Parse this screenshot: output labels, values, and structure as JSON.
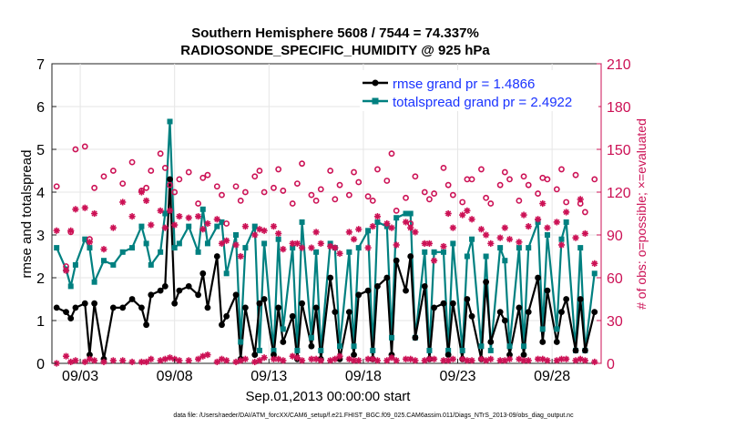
{
  "chart_data": {
    "type": "line",
    "title_line1": "Southern Hemisphere 5608 / 7544 = 74.337%",
    "title_line2": "RADIOSONDE_SPECIFIC_HUMIDITY @ 925 hPa",
    "xlabel": "Sep.01,2013 00:00:00 start",
    "ylabel_left": "rmse and totalspread",
    "ylabel_right": "# of obs: o=possible; ×=evaluated",
    "xlim": [
      1.5,
      30.6
    ],
    "ylim_left": [
      0,
      7
    ],
    "ylim_right": [
      0,
      210
    ],
    "xticks": [
      {
        "day": 3,
        "label": "09/03"
      },
      {
        "day": 8,
        "label": "09/08"
      },
      {
        "day": 13,
        "label": "09/13"
      },
      {
        "day": 18,
        "label": "09/18"
      },
      {
        "day": 23,
        "label": "09/23"
      },
      {
        "day": 28,
        "label": "09/28"
      }
    ],
    "yticks_left": [
      "0",
      "1",
      "2",
      "3",
      "4",
      "5",
      "6",
      "7"
    ],
    "yticks_right": [
      "0",
      "30",
      "60",
      "90",
      "120",
      "150",
      "180",
      "210"
    ],
    "legend": [
      {
        "label": "rmse grand pr = 1.4866",
        "color": "#000000"
      },
      {
        "label": "totalspread grand pr = 2.4922",
        "color": "#008080"
      }
    ],
    "footer": "data file: /Users/raeder/DAI/ATM_forcXX/CAM6_setup/f.e21.FHIST_BGC.f09_025.CAM6assim.011/Diags_NTrS_2013-09/obs_diag_output.nc",
    "colors": {
      "rmse": "#000000",
      "spread": "#008080",
      "obs": "#cc1155",
      "axis_right": "#cc1155",
      "legend_text": "#1a33ff"
    },
    "series": [
      {
        "name": "rmse",
        "x": [
          1.75,
          2.25,
          2.5,
          2.75,
          3.25,
          3.5,
          3.75,
          4.25,
          4.75,
          5.25,
          5.75,
          6.25,
          6.5,
          6.75,
          7.25,
          7.5,
          7.75,
          8.0,
          8.25,
          8.75,
          9.25,
          9.5,
          9.75,
          10.25,
          10.5,
          10.75,
          11.25,
          11.5,
          11.75,
          12.25,
          12.5,
          12.75,
          13.25,
          13.5,
          13.75,
          14.25,
          14.5,
          14.75,
          15.25,
          15.5,
          15.75,
          16.25,
          16.5,
          16.75,
          17.25,
          17.5,
          17.75,
          18.25,
          18.5,
          18.75,
          19.25,
          19.5,
          19.75,
          20.25,
          20.5,
          20.75,
          21.25,
          21.5,
          21.75,
          22.25,
          22.5,
          22.75,
          23.25,
          23.5,
          23.75,
          24.25,
          24.5,
          24.75,
          25.25,
          25.5,
          25.75,
          26.25,
          26.5,
          26.75,
          27.25,
          27.5,
          27.75,
          28.25,
          28.5,
          28.75,
          29.25,
          29.5,
          29.75,
          30.25
        ],
        "values": [
          1.3,
          1.2,
          1.05,
          1.3,
          1.4,
          0.2,
          1.4,
          0.1,
          1.3,
          1.3,
          1.5,
          1.3,
          0.9,
          1.6,
          1.7,
          1.8,
          4.3,
          1.4,
          1.7,
          1.8,
          1.6,
          2.1,
          1.3,
          2.5,
          0.9,
          1.1,
          1.6,
          0.1,
          1.3,
          0.2,
          1.4,
          1.5,
          0.2,
          1.3,
          0.5,
          1.1,
          0.1,
          1.4,
          0.4,
          1.3,
          0.1,
          2.0,
          1.2,
          0.1,
          1.2,
          0.2,
          1.6,
          1.7,
          0.1,
          1.8,
          2.0,
          0.2,
          2.4,
          1.7,
          2.5,
          0.6,
          1.8,
          0.1,
          1.3,
          1.4,
          0.2,
          1.4,
          0.1,
          1.5,
          1.1,
          0.1,
          1.9,
          0.5,
          1.2,
          1.0,
          0.2,
          1.3,
          0.2,
          1.2,
          2.0,
          0.5,
          1.7,
          0.5,
          1.2,
          1.5,
          0.3,
          1.5,
          0.3,
          1.2
        ]
      },
      {
        "name": "totalspread",
        "x": [
          1.75,
          2.25,
          2.5,
          2.75,
          3.25,
          3.5,
          3.75,
          4.25,
          4.75,
          5.25,
          5.75,
          6.25,
          6.5,
          6.75,
          7.25,
          7.5,
          7.75,
          8.0,
          8.25,
          8.75,
          9.25,
          9.5,
          9.75,
          10.25,
          10.5,
          10.75,
          11.25,
          11.5,
          11.75,
          12.25,
          12.5,
          12.75,
          13.25,
          13.5,
          13.75,
          14.25,
          14.5,
          14.75,
          15.25,
          15.5,
          15.75,
          16.25,
          16.5,
          16.75,
          17.25,
          17.5,
          17.75,
          18.25,
          18.5,
          18.75,
          19.25,
          19.5,
          19.75,
          20.25,
          20.5,
          20.75,
          21.25,
          21.5,
          21.75,
          22.25,
          22.5,
          22.75,
          23.25,
          23.5,
          23.75,
          24.25,
          24.5,
          24.75,
          25.25,
          25.5,
          25.75,
          26.25,
          26.5,
          26.75,
          27.25,
          27.5,
          27.75,
          28.25,
          28.5,
          28.75,
          29.25,
          29.5,
          29.75,
          30.25
        ],
        "values": [
          2.7,
          2.2,
          1.8,
          2.3,
          2.9,
          2.7,
          1.9,
          2.4,
          2.3,
          2.6,
          2.7,
          3.2,
          2.8,
          2.3,
          2.6,
          3.5,
          5.65,
          2.7,
          2.8,
          3.2,
          2.6,
          3.6,
          2.8,
          3.2,
          3.3,
          2.1,
          3.0,
          0.5,
          2.7,
          3.2,
          0.3,
          2.8,
          0.3,
          2.9,
          0.8,
          2.7,
          0.3,
          3.3,
          0.6,
          2.6,
          0.3,
          2.8,
          2.7,
          0.4,
          2.6,
          0.4,
          2.7,
          3.1,
          0.3,
          3.3,
          3.2,
          0.6,
          3.4,
          3.5,
          3.5,
          0.6,
          2.6,
          0.3,
          2.6,
          2.6,
          0.3,
          2.8,
          0.3,
          2.5,
          2.9,
          0.4,
          2.5,
          0.3,
          2.7,
          2.4,
          0.4,
          2.7,
          0.4,
          2.7,
          3.3,
          0.8,
          3.0,
          0.8,
          2.9,
          3.3,
          0.3,
          2.7,
          0.3,
          2.1
        ]
      },
      {
        "name": "obs possible",
        "x": [
          1.75,
          2.25,
          2.5,
          2.75,
          3.25,
          3.5,
          3.75,
          4.25,
          4.75,
          5.25,
          5.75,
          6.25,
          6.5,
          6.75,
          7.25,
          7.5,
          7.75,
          8.0,
          8.25,
          8.75,
          9.25,
          9.5,
          9.75,
          10.25,
          10.5,
          10.75,
          11.25,
          11.5,
          11.75,
          12.25,
          12.5,
          12.75,
          13.25,
          13.5,
          13.75,
          14.25,
          14.5,
          14.75,
          15.25,
          15.5,
          15.75,
          16.25,
          16.5,
          16.75,
          17.25,
          17.5,
          17.75,
          18.25,
          18.5,
          18.75,
          19.25,
          19.5,
          19.75,
          20.25,
          20.5,
          20.75,
          21.25,
          21.5,
          21.75,
          22.25,
          22.5,
          22.75,
          23.25,
          23.5,
          23.75,
          24.25,
          24.5,
          24.75,
          25.25,
          25.5,
          25.75,
          26.25,
          26.5,
          26.75,
          27.25,
          27.5,
          27.75,
          28.25,
          28.5,
          28.75,
          29.25,
          29.5,
          29.75,
          30.25
        ],
        "values": [
          124,
          68,
          92,
          150,
          152,
          87,
          123,
          131,
          135,
          126,
          141,
          121,
          123,
          135,
          147,
          137,
          125,
          120,
          129,
          134,
          112,
          130,
          132,
          124,
          118,
          98,
          124,
          114,
          120,
          131,
          135,
          120,
          123,
          136,
          121,
          112,
          126,
          140,
          118,
          114,
          122,
          135,
          115,
          125,
          118,
          134,
          127,
          117,
          114,
          136,
          128,
          147,
          107,
          116,
          98,
          131,
          120,
          115,
          119,
          137,
          125,
          118,
          113,
          129,
          129,
          136,
          116,
          112,
          125,
          134,
          129,
          114,
          131,
          125,
          119,
          130,
          129,
          122,
          136,
          113,
          132,
          112,
          106,
          129
        ]
      },
      {
        "name": "obs evaluated",
        "x": [
          1.75,
          2.25,
          2.5,
          2.75,
          3.25,
          3.5,
          3.75,
          4.25,
          4.75,
          5.25,
          5.75,
          6.25,
          6.5,
          6.75,
          7.25,
          7.5,
          7.75,
          8.0,
          8.25,
          8.75,
          9.25,
          9.5,
          9.75,
          10.25,
          10.5,
          10.75,
          11.25,
          11.5,
          11.75,
          12.25,
          12.5,
          12.75,
          13.25,
          13.5,
          13.75,
          14.25,
          14.5,
          14.75,
          15.25,
          15.5,
          15.75,
          16.25,
          16.5,
          16.75,
          17.25,
          17.5,
          17.75,
          18.25,
          18.5,
          18.75,
          19.25,
          19.5,
          19.75,
          20.25,
          20.5,
          20.75,
          21.25,
          21.5,
          21.75,
          22.25,
          22.5,
          22.75,
          23.25,
          23.5,
          23.75,
          24.25,
          24.5,
          24.75,
          25.25,
          25.5,
          25.75,
          26.25,
          26.5,
          26.75,
          27.25,
          27.5,
          27.75,
          28.25,
          28.5,
          28.75,
          29.25,
          29.5,
          29.75,
          30.25
        ],
        "values": [
          93,
          65,
          93,
          108,
          109,
          85,
          105,
          80,
          95,
          113,
          103,
          120,
          114,
          97,
          107,
          95,
          107,
          97,
          103,
          102,
          103,
          94,
          98,
          101,
          84,
          86,
          83,
          75,
          96,
          90,
          94,
          93,
          96,
          91,
          80,
          84,
          84,
          81,
          81,
          92,
          84,
          82,
          81,
          77,
          92,
          87,
          94,
          81,
          96,
          103,
          98,
          95,
          83,
          99,
          95,
          92,
          84,
          84,
          72,
          82,
          105,
          95,
          104,
          107,
          101,
          94,
          90,
          84,
          88,
          95,
          87,
          85,
          104,
          96,
          101,
          112,
          95,
          99,
          83,
          106,
          88,
          115,
          91,
          70
        ]
      },
      {
        "name": "obs bottom markers",
        "x": [
          1.75,
          2.25,
          2.5,
          2.75,
          3.25,
          3.5,
          3.75,
          4.25,
          4.75,
          5.25,
          5.75,
          6.25,
          6.5,
          6.75,
          7.25,
          7.5,
          7.75,
          8.0,
          8.25,
          8.75,
          9.25,
          9.5,
          9.75,
          10.25,
          10.5,
          10.75,
          11.25,
          11.5,
          11.75,
          12.25,
          12.5,
          12.75,
          13.25,
          13.5,
          13.75,
          14.25,
          14.5,
          14.75,
          15.25,
          15.5,
          15.75,
          16.25,
          16.5,
          16.75,
          17.25,
          17.5,
          17.75,
          18.25,
          18.5,
          18.75,
          19.25,
          19.5,
          19.75,
          20.25,
          20.5,
          20.75,
          21.25,
          21.5,
          21.75,
          22.25,
          22.5,
          22.75,
          23.25,
          23.5,
          23.75,
          24.25,
          24.5,
          24.75,
          25.25,
          25.5,
          25.75,
          26.25,
          26.5,
          26.75,
          27.25,
          27.5,
          27.75,
          28.25,
          28.5,
          28.75,
          29.25,
          29.5,
          29.75,
          30.25
        ],
        "values": [
          0,
          5,
          1,
          2,
          1,
          3,
          2,
          1,
          2,
          2,
          1,
          1,
          1,
          3,
          2,
          3,
          4,
          3,
          2,
          2,
          3,
          5,
          6,
          1,
          3,
          2,
          1,
          2,
          3,
          1,
          2,
          4,
          3,
          3,
          2,
          5,
          4,
          2,
          3,
          3,
          2,
          2,
          3,
          5,
          3,
          2,
          2,
          3,
          3,
          2,
          2,
          4,
          2,
          3,
          3,
          2,
          2,
          3,
          3,
          2,
          2,
          3,
          3,
          2,
          2,
          3,
          2,
          3,
          2,
          2,
          3,
          3,
          2,
          2,
          3,
          3,
          2,
          2,
          3,
          3,
          2,
          3,
          2,
          1
        ]
      }
    ]
  }
}
